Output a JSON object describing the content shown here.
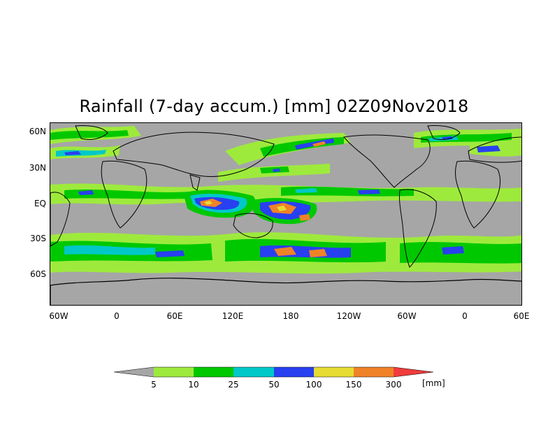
{
  "title": "Rainfall (7-day accum.) [mm] 02Z09Nov2018",
  "lat_labels": [
    "60N",
    "30N",
    "EQ",
    "30S",
    "60S"
  ],
  "lon_labels": [
    "60W",
    "0",
    "60E",
    "120E",
    "180",
    "120W",
    "60W",
    "0",
    "60E"
  ],
  "legend": {
    "thresholds": [
      "5",
      "10",
      "25",
      "50",
      "100",
      "150",
      "300"
    ],
    "units": "[mm]",
    "colors": [
      "#a6a6a6",
      "#9eea3c",
      "#00c800",
      "#00c8c8",
      "#2840f0",
      "#e6dc32",
      "#f08228",
      "#f03c3c"
    ]
  },
  "map": {
    "ocean_background": "#a6a6a6",
    "coastline_color": "#000000",
    "lon_range": [
      "60W",
      "60E (wrapped, 480 degrees)"
    ],
    "lat_range": [
      "70N",
      "80S"
    ]
  }
}
